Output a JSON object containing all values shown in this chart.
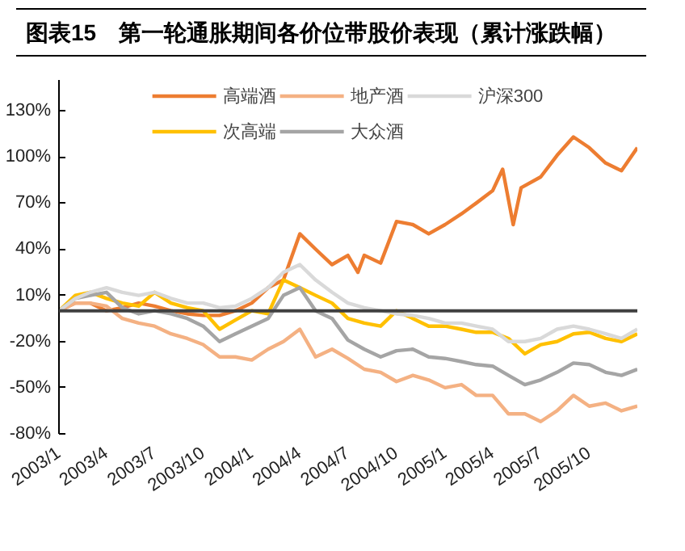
{
  "chart_data": {
    "type": "line",
    "title": "图表15　第一轮通胀期间各价位带股价表现（累计涨跌幅）",
    "x": [
      "2003-01-01",
      "2003-02-01",
      "2003-03-01",
      "2003-04-01",
      "2003-05-01",
      "2003-06-01",
      "2003-07-01",
      "2003-08-01",
      "2003-09-01",
      "2003-10-01",
      "2003-11-01",
      "2003-12-01",
      "2004-01-01",
      "2004-02-01",
      "2004-03-01",
      "2004-04-01",
      "2004-05-01",
      "2004-06-01",
      "2004-07-01",
      "2004-08-01",
      "2004-09-01",
      "2004-10-01",
      "2004-11-01",
      "2004-12-01",
      "2005-01-01",
      "2005-02-01",
      "2005-03-01",
      "2005-04-01",
      "2005-05-01",
      "2005-06-01",
      "2005-07-01",
      "2005-08-01",
      "2005-09-01",
      "2005-10-01",
      "2005-11-01",
      "2005-12-01",
      "2005-12-31"
    ],
    "series": [
      {
        "name": "高端酒",
        "color": "#ed7d31",
        "x": [
          "2003-01-01",
          "2003-02-01",
          "2003-03-01",
          "2003-04-01",
          "2003-05-01",
          "2003-06-01",
          "2003-07-01",
          "2003-08-01",
          "2003-09-01",
          "2003-10-01",
          "2003-11-01",
          "2003-12-01",
          "2004-01-01",
          "2004-02-01",
          "2004-03-01",
          "2004-04-01",
          "2004-05-01",
          "2004-06-01",
          "2004-07-01",
          "2004-07-20",
          "2004-08-01",
          "2004-09-01",
          "2004-10-01",
          "2004-11-01",
          "2004-12-01",
          "2005-01-01",
          "2005-02-01",
          "2005-03-01",
          "2005-04-01",
          "2005-04-20",
          "2005-05-10",
          "2005-05-25",
          "2005-07-01",
          "2005-08-01",
          "2005-09-01",
          "2005-10-01",
          "2005-11-01",
          "2005-12-01",
          "2005-12-31"
        ],
        "values": [
          0,
          5,
          5,
          0,
          2,
          5,
          3,
          0,
          -2,
          -3,
          -3,
          0,
          5,
          15,
          20,
          50,
          40,
          30,
          36,
          25,
          36,
          31,
          58,
          56,
          50,
          56,
          63,
          70,
          78,
          92,
          56,
          80,
          87,
          101,
          113,
          106,
          96,
          91,
          106
        ]
      },
      {
        "name": "次高端",
        "color": "#ffc000",
        "values": [
          0,
          10,
          12,
          8,
          5,
          3,
          12,
          5,
          2,
          0,
          -12,
          -6,
          0,
          -2,
          20,
          15,
          10,
          5,
          -5,
          -8,
          -10,
          0,
          -5,
          -10,
          -10,
          -12,
          -14,
          -14,
          -18,
          -28,
          -22,
          -20,
          -15,
          -14,
          -18,
          -20,
          -15
        ]
      },
      {
        "name": "地产酒",
        "color": "#f4b183",
        "values": [
          0,
          5,
          5,
          3,
          -5,
          -8,
          -10,
          -15,
          -18,
          -22,
          -30,
          -30,
          -32,
          -25,
          -20,
          -12,
          -30,
          -25,
          -31,
          -38,
          -40,
          -46,
          -42,
          -45,
          -50,
          -48,
          -55,
          -55,
          -67,
          -67,
          -72,
          -65,
          -55,
          -62,
          -60,
          -65,
          -62
        ]
      },
      {
        "name": "大众酒",
        "color": "#a5a5a5",
        "values": [
          0,
          8,
          10,
          12,
          2,
          -2,
          0,
          -2,
          -5,
          -10,
          -20,
          -15,
          -10,
          -5,
          10,
          15,
          0,
          -5,
          -19,
          -25,
          -30,
          -26,
          -25,
          -30,
          -31,
          -33,
          -35,
          -36,
          -42,
          -48,
          -45,
          -40,
          -34,
          -35,
          -40,
          -42,
          -38
        ]
      },
      {
        "name": "沪深300",
        "color": "#d9d9d9",
        "values": [
          0,
          8,
          12,
          15,
          12,
          10,
          12,
          8,
          5,
          5,
          2,
          3,
          8,
          15,
          25,
          30,
          20,
          12,
          5,
          2,
          0,
          -2,
          -3,
          -5,
          -8,
          -8,
          -10,
          -12,
          -20,
          -20,
          -18,
          -12,
          -10,
          -12,
          -15,
          -18,
          -12
        ]
      }
    ],
    "xlim": [
      "2003-01-01",
      "2005-12-31"
    ],
    "xticks": [
      {
        "value": "2003-01-01",
        "label": "2003/1"
      },
      {
        "value": "2003-04-01",
        "label": "2003/4"
      },
      {
        "value": "2003-07-01",
        "label": "2003/7"
      },
      {
        "value": "2003-10-01",
        "label": "2003/10"
      },
      {
        "value": "2004-01-01",
        "label": "2004/1"
      },
      {
        "value": "2004-04-01",
        "label": "2004/4"
      },
      {
        "value": "2004-07-01",
        "label": "2004/7"
      },
      {
        "value": "2004-10-01",
        "label": "2004/10"
      },
      {
        "value": "2005-01-01",
        "label": "2005/1"
      },
      {
        "value": "2005-04-01",
        "label": "2005/4"
      },
      {
        "value": "2005-07-01",
        "label": "2005/7"
      },
      {
        "value": "2005-10-01",
        "label": "2005/10"
      }
    ],
    "ylim": [
      -80,
      150
    ],
    "yticks": [
      {
        "value": -80,
        "label": "-80%"
      },
      {
        "value": -50,
        "label": "-50%"
      },
      {
        "value": -20,
        "label": "-20%"
      },
      {
        "value": 10,
        "label": "10%"
      },
      {
        "value": 40,
        "label": "40%"
      },
      {
        "value": 70,
        "label": "70%"
      },
      {
        "value": 100,
        "label": "100%"
      },
      {
        "value": 130,
        "label": "130%"
      }
    ],
    "ref_lines": [
      {
        "axis": "y",
        "value": 0,
        "color": "#404040"
      }
    ],
    "grid": false,
    "legend": "top"
  }
}
